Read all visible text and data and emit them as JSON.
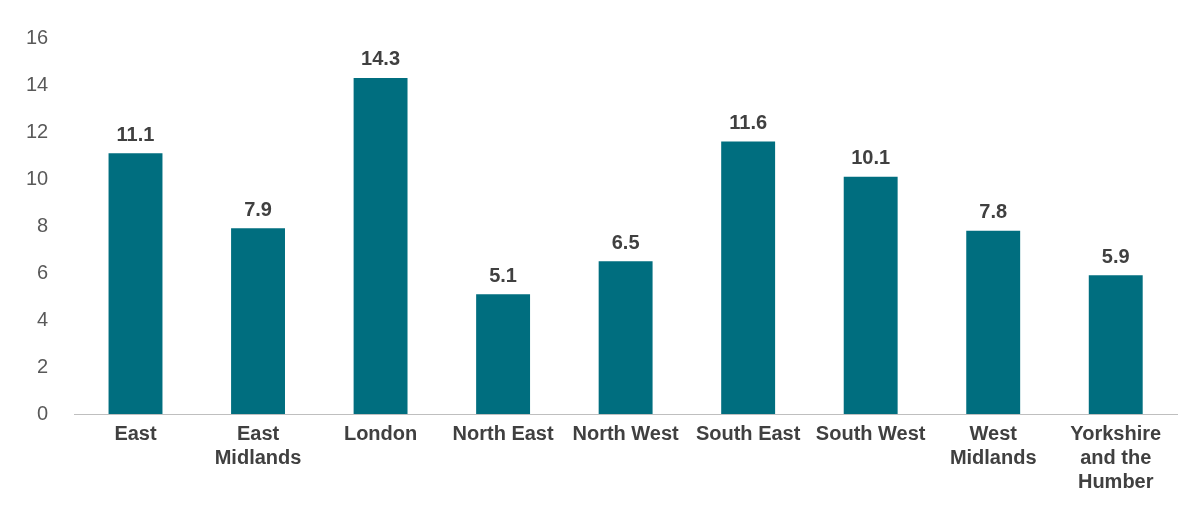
{
  "chart_data": {
    "type": "bar",
    "categories": [
      "East",
      "East Midlands",
      "London",
      "North East",
      "North West",
      "South East",
      "South West",
      "West Midlands",
      "Yorkshire and the Humber"
    ],
    "values": [
      11.1,
      7.9,
      14.3,
      5.1,
      6.5,
      11.6,
      10.1,
      7.8,
      5.9
    ],
    "color": "#006e7f",
    "ylim": [
      0,
      16
    ],
    "yticks": [
      0,
      2,
      4,
      6,
      8,
      10,
      12,
      14,
      16
    ],
    "data_labels": true
  }
}
